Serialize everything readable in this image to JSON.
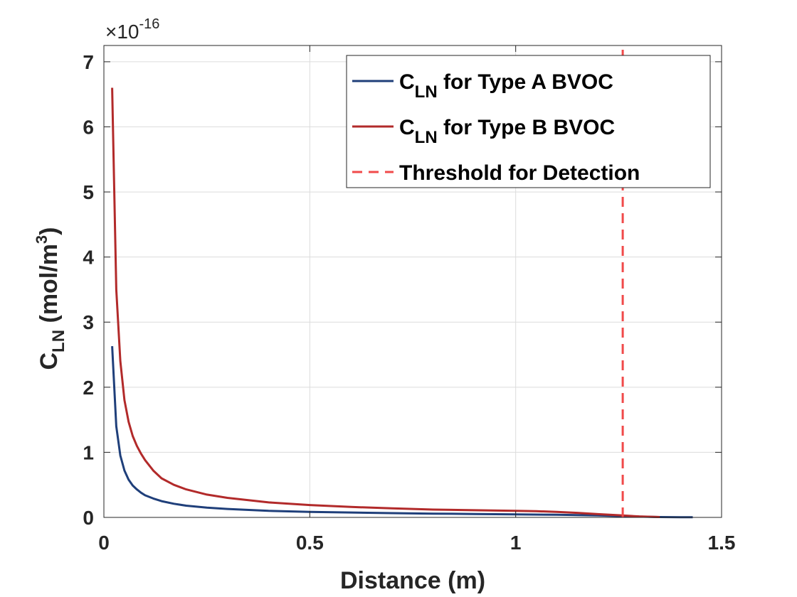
{
  "chart_data": {
    "type": "line",
    "title": "",
    "xlabel": "Distance (m)",
    "ylabel_main": "C",
    "ylabel_sub": "LN",
    "ylabel_units_pre": "(mol/m",
    "ylabel_units_sup": "3",
    "ylabel_units_post": ")",
    "exponent_base": "×10",
    "exponent_power": "-16",
    "xlim": [
      0,
      1.5
    ],
    "ylim": [
      0,
      7.25
    ],
    "xticks": [
      0,
      0.5,
      1,
      1.5
    ],
    "xtick_labels": [
      "0",
      "0.5",
      "1",
      "1.5"
    ],
    "yticks": [
      0,
      1,
      2,
      3,
      4,
      5,
      6,
      7
    ],
    "ytick_labels": [
      "0",
      "1",
      "2",
      "3",
      "4",
      "5",
      "6",
      "7"
    ],
    "grid": true,
    "legend_position": "top-right",
    "series": [
      {
        "name": "C_LN for Type A BVOC",
        "legend_main": "C",
        "legend_sub": "LN",
        "legend_rest": " for Type A BVOC",
        "color": "#1f3f7a",
        "style": "solid",
        "x": [
          0.02,
          0.03,
          0.04,
          0.05,
          0.06,
          0.07,
          0.08,
          0.09,
          0.1,
          0.12,
          0.14,
          0.17,
          0.2,
          0.25,
          0.3,
          0.4,
          0.5,
          0.6,
          0.7,
          0.8,
          0.9,
          1.0,
          1.1,
          1.2,
          1.26,
          1.3,
          1.35,
          1.4,
          1.43
        ],
        "y": [
          2.63,
          1.4,
          0.95,
          0.72,
          0.58,
          0.49,
          0.43,
          0.38,
          0.34,
          0.29,
          0.25,
          0.21,
          0.18,
          0.15,
          0.13,
          0.1,
          0.085,
          0.075,
          0.065,
          0.058,
          0.052,
          0.047,
          0.04,
          0.03,
          0.02,
          0.012,
          0.006,
          0.003,
          0.002
        ]
      },
      {
        "name": "C_LN for Type B BVOC",
        "legend_main": "C",
        "legend_sub": "LN",
        "legend_rest": " for Type B BVOC",
        "color": "#b22a2a",
        "style": "solid",
        "x": [
          0.02,
          0.03,
          0.04,
          0.05,
          0.06,
          0.07,
          0.08,
          0.09,
          0.1,
          0.12,
          0.14,
          0.17,
          0.2,
          0.25,
          0.3,
          0.4,
          0.5,
          0.6,
          0.7,
          0.8,
          0.9,
          1.0,
          1.05,
          1.1,
          1.15,
          1.2,
          1.26,
          1.3,
          1.35
        ],
        "y": [
          6.6,
          3.5,
          2.4,
          1.8,
          1.47,
          1.25,
          1.1,
          0.98,
          0.88,
          0.72,
          0.6,
          0.5,
          0.43,
          0.35,
          0.3,
          0.23,
          0.19,
          0.16,
          0.14,
          0.12,
          0.11,
          0.1,
          0.095,
          0.085,
          0.07,
          0.05,
          0.03,
          0.015,
          0.005
        ]
      },
      {
        "name": "Threshold for Detection",
        "legend_main": "Threshold for Detection",
        "legend_sub": "",
        "legend_rest": "",
        "color": "#f04a4a",
        "style": "dashed",
        "x": [
          1.26,
          1.26
        ],
        "y": [
          0,
          7.25
        ]
      }
    ]
  }
}
